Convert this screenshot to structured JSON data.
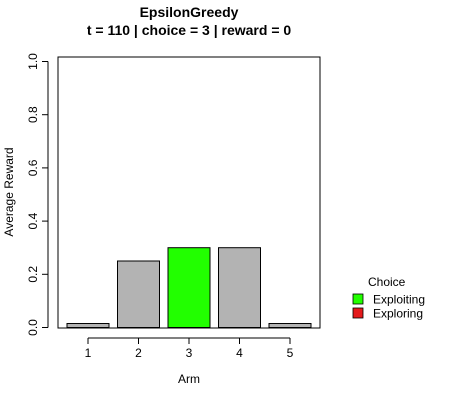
{
  "chart_data": {
    "type": "bar",
    "title": "EpsilonGreedy",
    "subtitle": "t = 110 | choice = 3 | reward = 0",
    "xlabel": "Arm",
    "ylabel": "Average Reward",
    "categories": [
      "1",
      "2",
      "3",
      "4",
      "5"
    ],
    "values": [
      0.015,
      0.25,
      0.3,
      0.3,
      0.015
    ],
    "bar_status": [
      "other",
      "other",
      "exploiting",
      "other",
      "other"
    ],
    "ylim": [
      0,
      1.0
    ],
    "yticks": [
      "0.0",
      "0.2",
      "0.4",
      "0.6",
      "0.8",
      "1.0"
    ],
    "grid": false,
    "colors": {
      "default_bar": "#b3b3b3",
      "exploiting": "#22ff00",
      "exploring": "#e41a1c",
      "bar_border": "#000000"
    },
    "legend": {
      "title": "Choice",
      "position": "right",
      "items": [
        {
          "label": "Exploiting",
          "color": "#22ff00"
        },
        {
          "label": "Exploring",
          "color": "#e41a1c"
        }
      ]
    }
  }
}
